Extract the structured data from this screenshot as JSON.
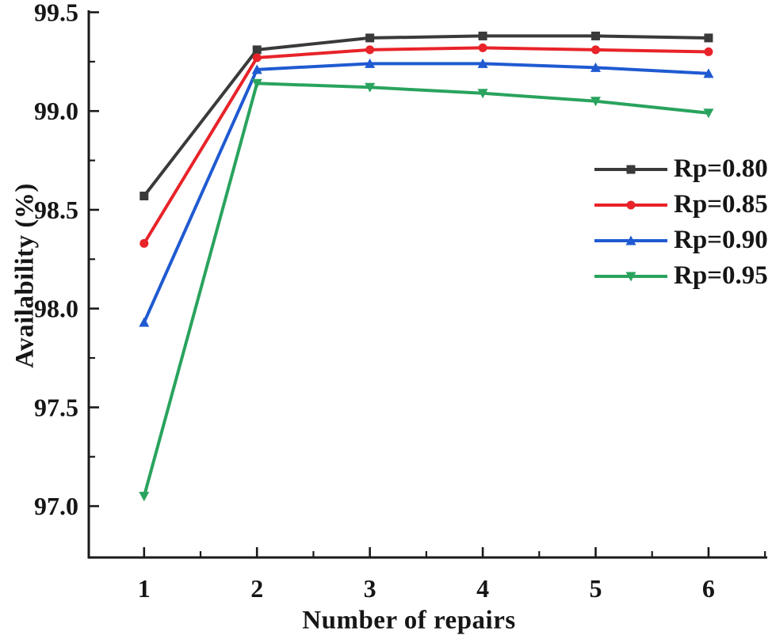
{
  "chart_data": {
    "type": "line",
    "title": "",
    "xlabel": "Number of repairs",
    "ylabel": "Availability (%)",
    "x": [
      1,
      2,
      3,
      4,
      5,
      6
    ],
    "series": [
      {
        "name": "Rp=0.80",
        "color": "#3a3a3a",
        "marker": "square",
        "values": [
          98.57,
          99.31,
          99.37,
          99.38,
          99.38,
          99.37
        ]
      },
      {
        "name": "Rp=0.85",
        "color": "#e82329",
        "marker": "circle",
        "values": [
          98.33,
          99.27,
          99.31,
          99.32,
          99.31,
          99.3
        ]
      },
      {
        "name": "Rp=0.90",
        "color": "#1f5ad1",
        "marker": "triangle-up",
        "values": [
          97.93,
          99.21,
          99.24,
          99.24,
          99.22,
          99.19
        ]
      },
      {
        "name": "Rp=0.95",
        "color": "#29a35d",
        "marker": "triangle-down",
        "values": [
          97.05,
          99.14,
          99.12,
          99.09,
          99.05,
          98.99
        ]
      }
    ],
    "y_ticks": {
      "values": [
        99.5,
        99.0,
        98.5,
        98.0,
        97.5,
        97.0
      ],
      "labels": [
        "99.5",
        "99.0",
        "98.5",
        "98.0",
        "97.5",
        "97.0"
      ]
    },
    "y_minor_ticks": [
      99.25,
      98.75,
      98.25,
      97.75,
      97.25
    ],
    "x_ticks": {
      "values": [
        1,
        2,
        3,
        4,
        5,
        6
      ],
      "labels": [
        "1",
        "2",
        "3",
        "4",
        "5",
        "6"
      ]
    },
    "x_minor_ticks": [
      1.5,
      2.5,
      3.5,
      4.5,
      5.5,
      6.5
    ],
    "ylim": [
      96.74,
      99.51
    ],
    "xlim": [
      0.51,
      6.52
    ],
    "grid": false,
    "legend_position": "right-middle",
    "axis_color": "#1a1a1a",
    "background_color": "#ffffff"
  }
}
